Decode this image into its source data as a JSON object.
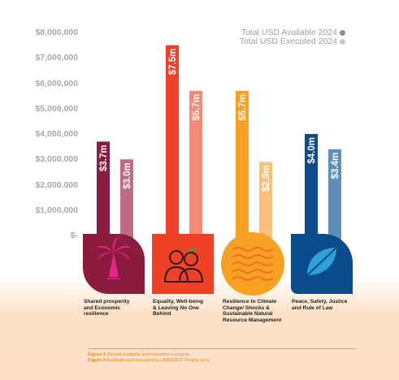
{
  "chart_data": {
    "type": "bar",
    "categories": [
      "Shared prosperity and Economic resilience",
      "Equality, Well-being & Leaving No One Behind",
      "Resilience to Climate Change/ Shocks & Sustainable Natural Resource Management",
      "Peace, Safety, Justice and Rule of Law"
    ],
    "series": [
      {
        "name": "Total USD Available 2024",
        "values": [
          3700000,
          7500000,
          5700000,
          4000000
        ],
        "labels": [
          "$3.7m",
          "$7.5m",
          "$5.7m",
          "$4.0m"
        ]
      },
      {
        "name": "Total USD Executed 2024",
        "values": [
          3000000,
          5700000,
          2900000,
          3400000
        ],
        "labels": [
          "$3.0m",
          "$5.7m",
          "$2.9m",
          "$3.4m"
        ]
      }
    ],
    "yticks": [
      "$8,000,000",
      "$7,000,000",
      "$6,000,000",
      "$5,000,000",
      "$4,000,000",
      "$3,000,000",
      "$2,000,000",
      "$1,000,000",
      "$-"
    ],
    "ylim": [
      0,
      8000000
    ],
    "legend_position": "top-right",
    "grid": false
  },
  "colors": {
    "available": [
      "#8c1c3e",
      "#ee4128",
      "#f6a024",
      "#0b4c8c"
    ],
    "executed": [
      "#bf6c80",
      "#f68a78",
      "#fbbf79",
      "#5d8fba"
    ],
    "legend_available": "#8d8f92",
    "legend_executed": "#c8cacc"
  },
  "icons": [
    "palm-tree-icon",
    "people-icon",
    "waves-icon",
    "leaf-icon"
  ],
  "category_labels": [
    [
      "Shared prosperity",
      "and Economic",
      "resilience"
    ],
    [
      "Equality, Well-being",
      "& Leaving No One",
      "Behind"
    ],
    [
      "Resilience to Climate",
      "Change/ Shocks &",
      "Sustainable Natural",
      "Resource Management"
    ],
    [
      "Peace, Safety, Justice",
      "and Rule of Law"
    ]
  ],
  "captions": [
    {
      "label": "Figure 1",
      "text": " Overall available and executed resources"
    },
    {
      "label": "Figure 2",
      "text": " Available and executed by UNMSDCF Priority area"
    }
  ]
}
